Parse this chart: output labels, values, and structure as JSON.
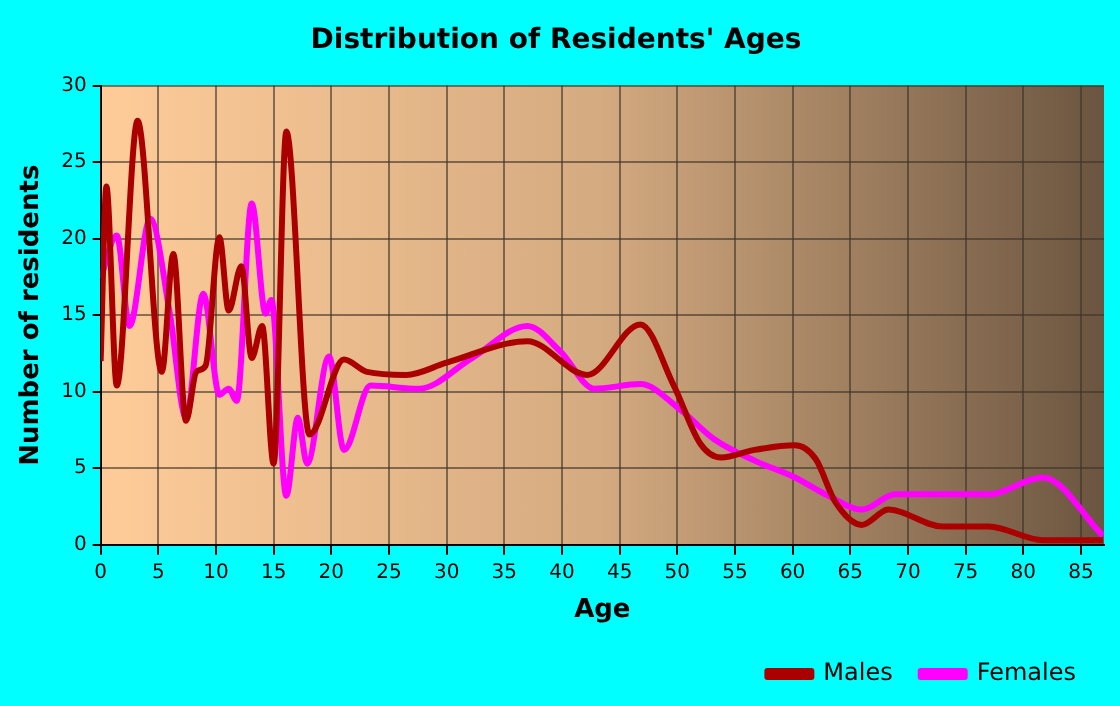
{
  "chart_data": {
    "type": "line",
    "title": "Distribution of Residents' Ages",
    "xlabel": "Age",
    "ylabel": "Number of residents",
    "xlim": [
      0,
      87
    ],
    "xticks": [
      0,
      5,
      10,
      15,
      20,
      25,
      30,
      35,
      40,
      45,
      50,
      55,
      60,
      65,
      70,
      75,
      80,
      85
    ],
    "ylim": [
      0,
      30
    ],
    "yticks": [
      0,
      5,
      10,
      15,
      20,
      25,
      30
    ],
    "grid": true,
    "legend": "bottom",
    "marker": "none",
    "line_style": "solid",
    "series": [
      {
        "name": "Males",
        "color": "#aa0000",
        "x": [
          0,
          0.5,
          1.4,
          3.2,
          5.3,
          6.3,
          7.4,
          8.3,
          9.1,
          10.3,
          11.1,
          12.2,
          13.1,
          14,
          15,
          16.1,
          18.1,
          21.1,
          23.1,
          26.5,
          30,
          37,
          42.2,
          46.8,
          49.7,
          52,
          53.8,
          56.7,
          60.2,
          62,
          63.7,
          66,
          68.3,
          73,
          77,
          81.7,
          86.9
        ],
        "values": [
          12,
          23.4,
          10.4,
          27.7,
          11.3,
          19,
          8.1,
          11.3,
          11.7,
          20.1,
          15.3,
          18.2,
          12.2,
          14.3,
          5.3,
          27,
          7.2,
          12.1,
          11.3,
          11.1,
          11.9,
          13.3,
          11.1,
          14.4,
          10.4,
          6.6,
          5.7,
          6.2,
          6.5,
          5.6,
          2.8,
          1.3,
          2.3,
          1.2,
          1.2,
          0.3,
          0.3
        ]
      },
      {
        "name": "Females",
        "color": "#ff00ff",
        "x": [
          0,
          1.4,
          2.5,
          4.3,
          6,
          7.4,
          8.9,
          10.3,
          11.1,
          11.8,
          13.1,
          14.3,
          14.8,
          16.1,
          17.1,
          17.9,
          19.8,
          21.1,
          23.4,
          27.6,
          32.2,
          37,
          39.9,
          42.8,
          46.8,
          50.3,
          53.2,
          56.7,
          60.2,
          63.1,
          66,
          68.9,
          77,
          81.7,
          86.9
        ],
        "values": [
          17.4,
          20.2,
          14.3,
          21.3,
          15.1,
          8.3,
          16.4,
          9.8,
          10.2,
          9.4,
          22.3,
          15.1,
          16,
          3.2,
          8.3,
          5.3,
          12.3,
          6.2,
          10.4,
          10.2,
          12.2,
          14.3,
          12.6,
          10.2,
          10.5,
          8.8,
          6.9,
          5.5,
          4.4,
          3.2,
          2.3,
          3.3,
          3.3,
          4.4,
          0.6
        ]
      }
    ]
  }
}
